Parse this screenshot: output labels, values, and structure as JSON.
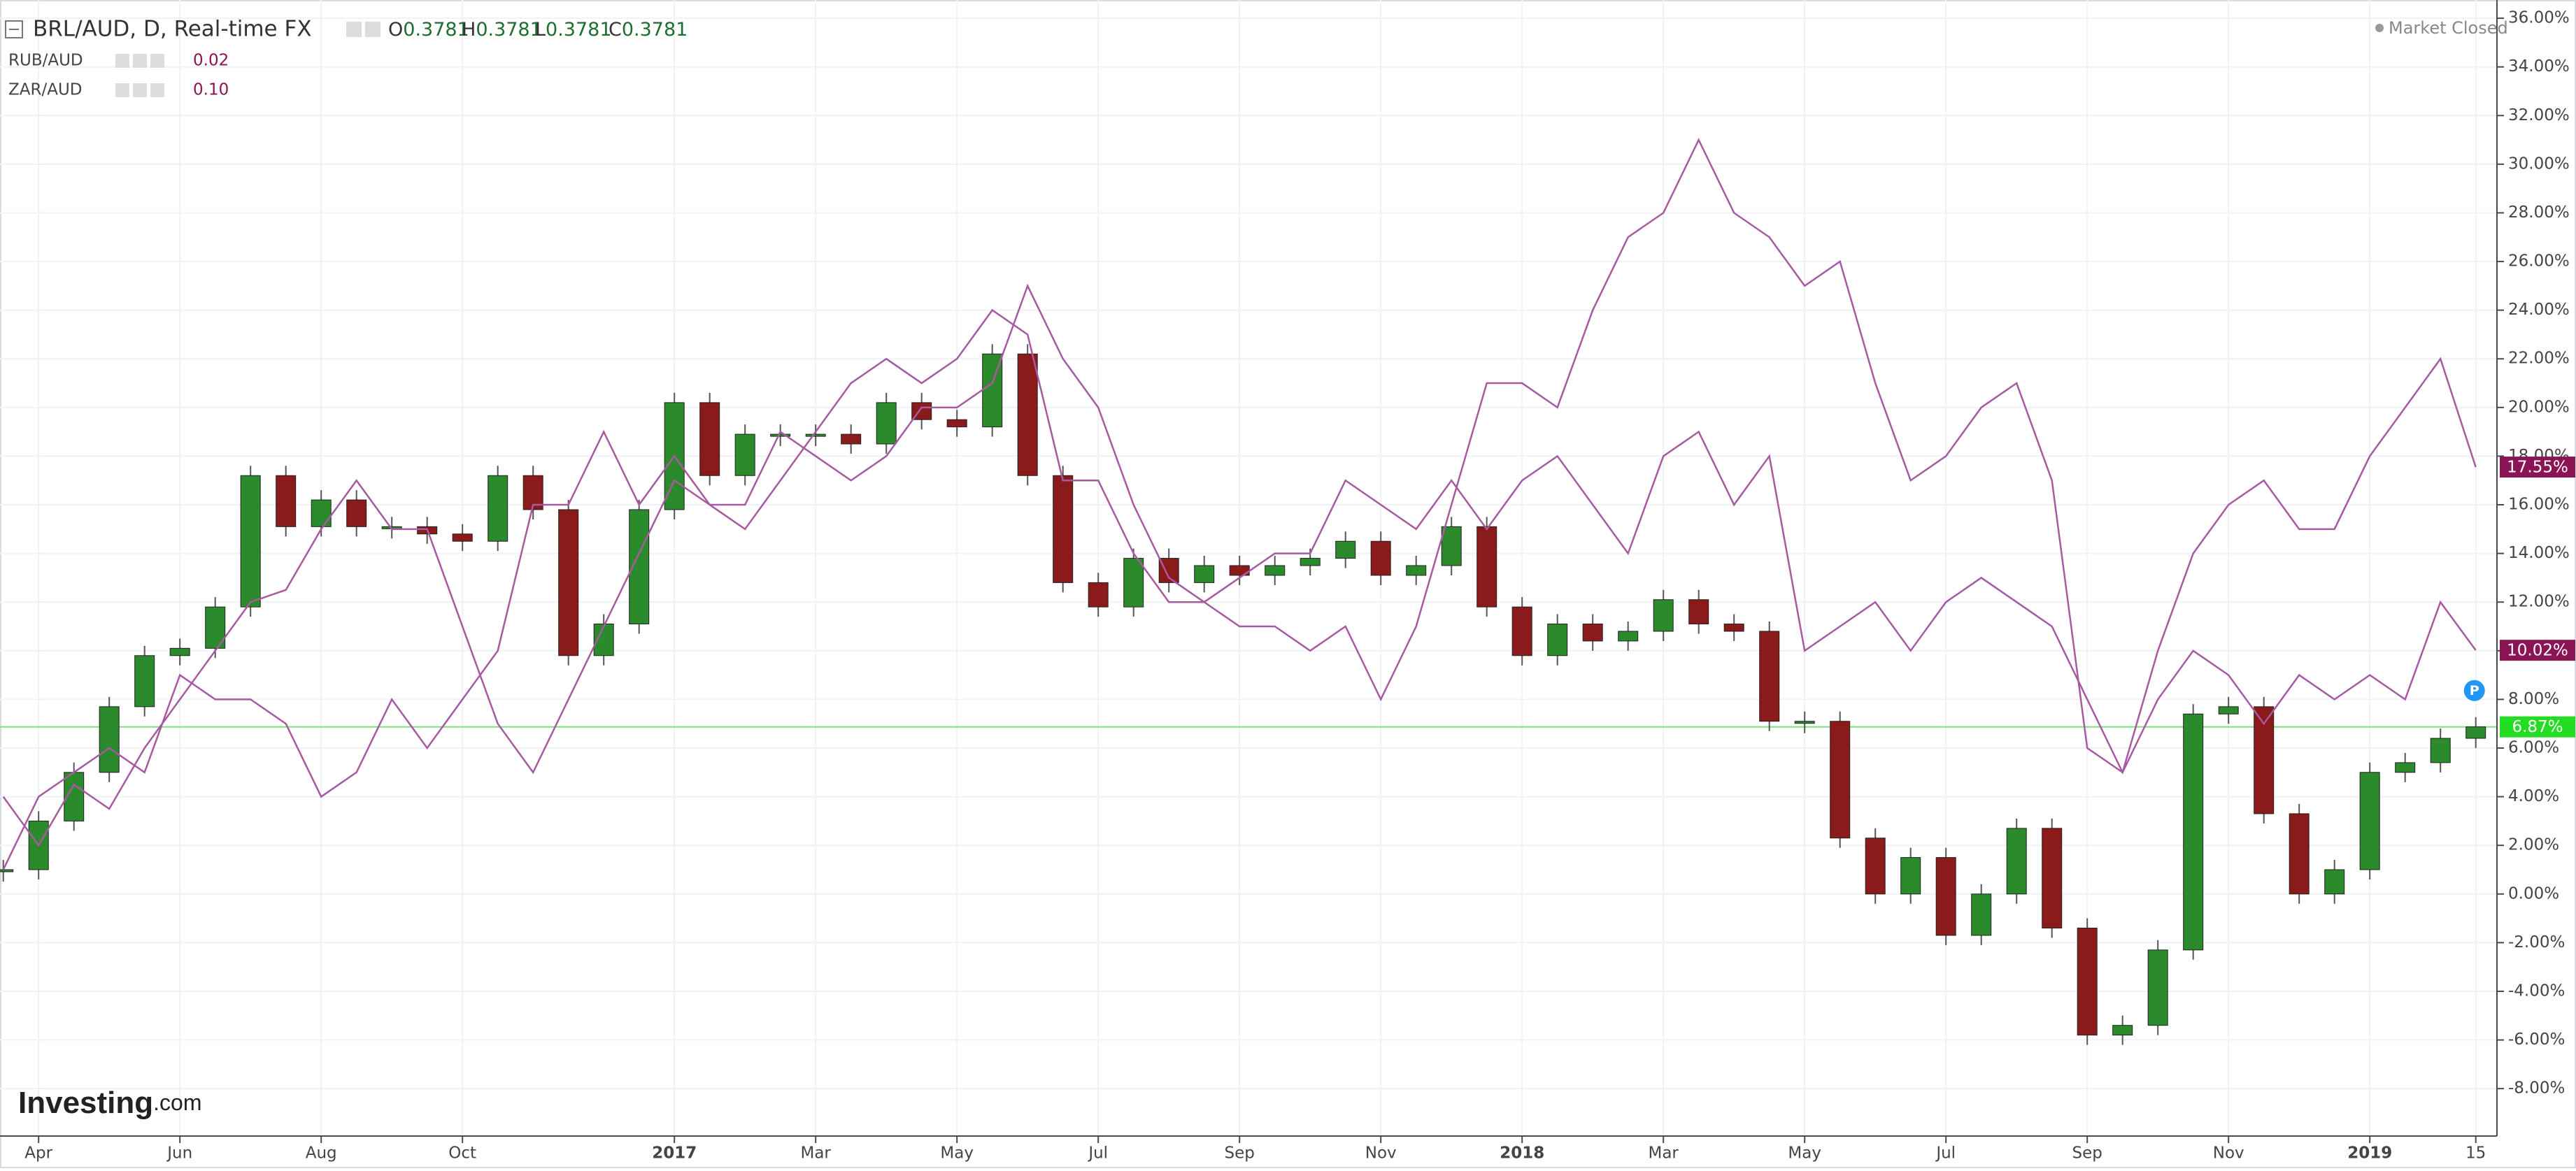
{
  "chart_data": {
    "type": "candlestick",
    "title": "BRL/AUD, D, Real-time FX",
    "ohlc": [
      {
        "label": "O",
        "value": 0.3781
      },
      {
        "label": "H",
        "value": 0.3781
      },
      {
        "label": "L",
        "value": 0.3781
      },
      {
        "label": "C",
        "value": 0.3781
      }
    ],
    "status": "Market Closed",
    "brand": "Investing",
    "brand_suffix": ".com",
    "marker": "P",
    "categories": [
      null,
      "Apr",
      null,
      null,
      null,
      "Jun",
      null,
      null,
      null,
      "Aug",
      null,
      null,
      null,
      "Oct",
      null,
      null,
      null,
      null,
      null,
      "2017",
      null,
      null,
      null,
      "Mar",
      null,
      null,
      null,
      "May",
      null,
      null,
      null,
      "Jul",
      null,
      null,
      null,
      "Sep",
      null,
      null,
      null,
      "Nov",
      null,
      null,
      null,
      "2018",
      null,
      null,
      null,
      "Mar",
      null,
      null,
      null,
      "May",
      null,
      null,
      null,
      "Jul",
      null,
      null,
      null,
      "Sep",
      null,
      null,
      null,
      "Nov",
      null,
      null,
      null,
      "2019",
      null,
      null,
      "15"
    ],
    "ylim": [
      -9.95,
      36.75
    ],
    "yticks": [
      {
        "value": 36,
        "label": "36.00%"
      },
      {
        "value": 34,
        "label": "34.00%"
      },
      {
        "value": 32,
        "label": "32.00%"
      },
      {
        "value": 30,
        "label": "30.00%"
      },
      {
        "value": 28,
        "label": "28.00%"
      },
      {
        "value": 26,
        "label": "26.00%"
      },
      {
        "value": 24,
        "label": "24.00%"
      },
      {
        "value": 22,
        "label": "22.00%"
      },
      {
        "value": 20,
        "label": "20.00%"
      },
      {
        "value": 18,
        "label": "18.00%"
      },
      {
        "value": 16,
        "label": "16.00%"
      },
      {
        "value": 14,
        "label": "14.00%"
      },
      {
        "value": 12,
        "label": "12.00%"
      },
      {
        "value": 10,
        "label": "10.00%"
      },
      {
        "value": 8,
        "label": "8.00%"
      },
      {
        "value": 6,
        "label": "6.00%"
      },
      {
        "value": 4,
        "label": "4.00%"
      },
      {
        "value": 2,
        "label": "2.00%"
      },
      {
        "value": 0,
        "label": "0.00%"
      },
      {
        "value": -2,
        "label": "-2.00%"
      },
      {
        "value": -4,
        "label": "-4.00%"
      },
      {
        "value": -6,
        "label": "-6.00%"
      },
      {
        "value": -8,
        "label": "-8.00%"
      }
    ],
    "grid": true,
    "series": [
      {
        "name": "BRL/AUD",
        "up_color": "#2b8a2b",
        "down_color": "#8b1a1a",
        "last_color": "#22dd22",
        "last_label": "6.87%",
        "values": [
          1.0,
          3.0,
          5.0,
          7.7,
          9.8,
          10.1,
          11.8,
          17.2,
          15.1,
          16.2,
          15.1,
          15.1,
          14.8,
          14.5,
          17.2,
          15.8,
          9.8,
          11.1,
          15.8,
          20.2,
          17.2,
          18.9,
          18.9,
          18.9,
          18.5,
          20.2,
          19.5,
          19.2,
          22.2,
          17.2,
          12.8,
          11.8,
          13.8,
          12.8,
          13.5,
          13.1,
          13.5,
          13.8,
          14.5,
          13.1,
          13.5,
          15.1,
          11.8,
          9.8,
          11.1,
          10.4,
          10.8,
          12.1,
          11.1,
          10.8,
          7.1,
          7.1,
          2.3,
          0.0,
          1.5,
          -1.7,
          0.0,
          2.7,
          -1.4,
          -5.8,
          -5.4,
          -2.3,
          7.4,
          7.7,
          3.3,
          0.0,
          1.0,
          5.0,
          5.4,
          6.4,
          6.87
        ]
      },
      {
        "name": "RUB/AUD",
        "legend_value": "0.02",
        "color": "#a85aa0",
        "last_color": "#8b1454",
        "last_label": "10.02%",
        "values": [
          1,
          4,
          5,
          6,
          5,
          9,
          8,
          8,
          7,
          4,
          5,
          8,
          6,
          8,
          10,
          16,
          16,
          19,
          16,
          18,
          16,
          16,
          19,
          18,
          17,
          18,
          20,
          20,
          21,
          25,
          22,
          20,
          16,
          13,
          12,
          13,
          14,
          14,
          17,
          16,
          15,
          17,
          15,
          17,
          18,
          16,
          14,
          18,
          19,
          16,
          18,
          10,
          11,
          12,
          10,
          12,
          13,
          12,
          11,
          8,
          5,
          8,
          10,
          9,
          7,
          9,
          8,
          9,
          8,
          12,
          10.02
        ]
      },
      {
        "name": "ZAR/AUD",
        "legend_value": "0.10",
        "color": "#a85aa0",
        "last_color": "#8b1454",
        "last_label": "17.55%",
        "values": [
          4,
          2,
          4.5,
          3.5,
          6,
          8,
          10,
          12,
          12.5,
          15,
          17,
          15,
          15,
          11,
          7,
          5,
          8,
          11,
          14,
          17,
          16,
          15,
          17,
          19,
          21,
          22,
          21,
          22,
          24,
          23,
          17,
          17,
          14,
          12,
          12,
          11,
          11,
          10,
          11,
          8,
          11,
          16,
          21,
          21,
          20,
          24,
          27,
          28,
          31,
          28,
          27,
          25,
          26,
          21,
          17,
          18,
          20,
          21,
          17,
          6,
          5,
          10,
          14,
          16,
          17,
          15,
          15,
          18,
          20,
          22,
          17.55
        ]
      }
    ]
  }
}
